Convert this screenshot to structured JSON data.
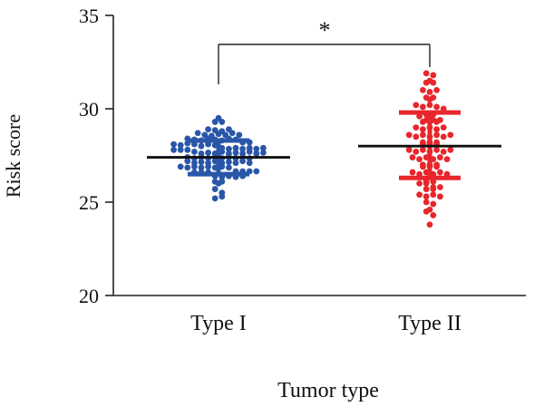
{
  "chart_data": {
    "type": "scatter",
    "subtype": "dot-plot-with-mean-and-sd",
    "xlabel": "Tumor type",
    "ylabel": "Risk score",
    "ylim": [
      20,
      35
    ],
    "yticks": [
      "20",
      "25",
      "30",
      "35"
    ],
    "categories": [
      "Type I",
      "Type II"
    ],
    "significance": "*",
    "grid": false,
    "series": [
      {
        "name": "Type I",
        "color": "#2a56a8",
        "mean": 27.4,
        "sd_low": 26.5,
        "sd_high": 28.3,
        "values": [
          29.5,
          29.3,
          29.3,
          28.9,
          28.85,
          28.8,
          28.9,
          28.7,
          28.6,
          28.55,
          28.65,
          28.6,
          28.7,
          28.6,
          28.4,
          28.35,
          28.3,
          28.4,
          28.35,
          28.3,
          28.4,
          28.35,
          28.2,
          28.1,
          28.05,
          28.15,
          28.1,
          28.0,
          28.2,
          28.1,
          28.05,
          27.9,
          27.85,
          27.8,
          27.9,
          27.85,
          27.8,
          27.9,
          27.85,
          27.8,
          27.9,
          27.7,
          27.6,
          27.65,
          27.6,
          27.7,
          27.6,
          27.65,
          27.6,
          27.7,
          27.6,
          27.65,
          27.4,
          27.35,
          27.4,
          27.35,
          27.4,
          27.35,
          27.4,
          27.35,
          27.4,
          27.35,
          27.2,
          27.1,
          27.15,
          27.1,
          27.2,
          27.1,
          27.15,
          27.1,
          27.2,
          27.1,
          26.9,
          26.85,
          26.9,
          26.85,
          26.9,
          26.85,
          26.9,
          26.85,
          26.65,
          26.6,
          26.65,
          26.6,
          26.65,
          26.6,
          26.65,
          26.4,
          26.35,
          26.4,
          26.35,
          26.4,
          26.1,
          26.0,
          26.1,
          25.7,
          25.5,
          25.2,
          25.3
        ]
      },
      {
        "name": "Type II",
        "color": "#e8262b",
        "mean": 28.0,
        "sd_low": 26.3,
        "sd_high": 29.8,
        "values": [
          31.9,
          31.8,
          31.5,
          31.4,
          31.4,
          31.0,
          30.9,
          31.0,
          30.6,
          30.5,
          30.6,
          30.2,
          30.1,
          30.2,
          30.1,
          30.0,
          29.7,
          29.6,
          29.7,
          29.4,
          29.3,
          29.4,
          29.3,
          29.4,
          29.3,
          29.0,
          28.9,
          29.0,
          28.9,
          29.0,
          28.6,
          28.5,
          28.6,
          28.5,
          28.6,
          28.5,
          28.6,
          28.2,
          28.1,
          28.2,
          28.1,
          28.2,
          28.1,
          27.8,
          27.7,
          27.8,
          27.7,
          27.8,
          27.7,
          27.8,
          27.4,
          27.3,
          27.4,
          27.3,
          27.4,
          27.3,
          27.0,
          26.9,
          27.0,
          26.9,
          27.0,
          26.9,
          26.6,
          26.5,
          26.6,
          26.5,
          26.6,
          26.5,
          26.1,
          26.0,
          26.1,
          26.0,
          25.8,
          25.7,
          25.8,
          25.7,
          25.4,
          25.3,
          25.4,
          25.3,
          25.0,
          24.9,
          24.6,
          24.5,
          24.3,
          23.8
        ]
      }
    ]
  }
}
